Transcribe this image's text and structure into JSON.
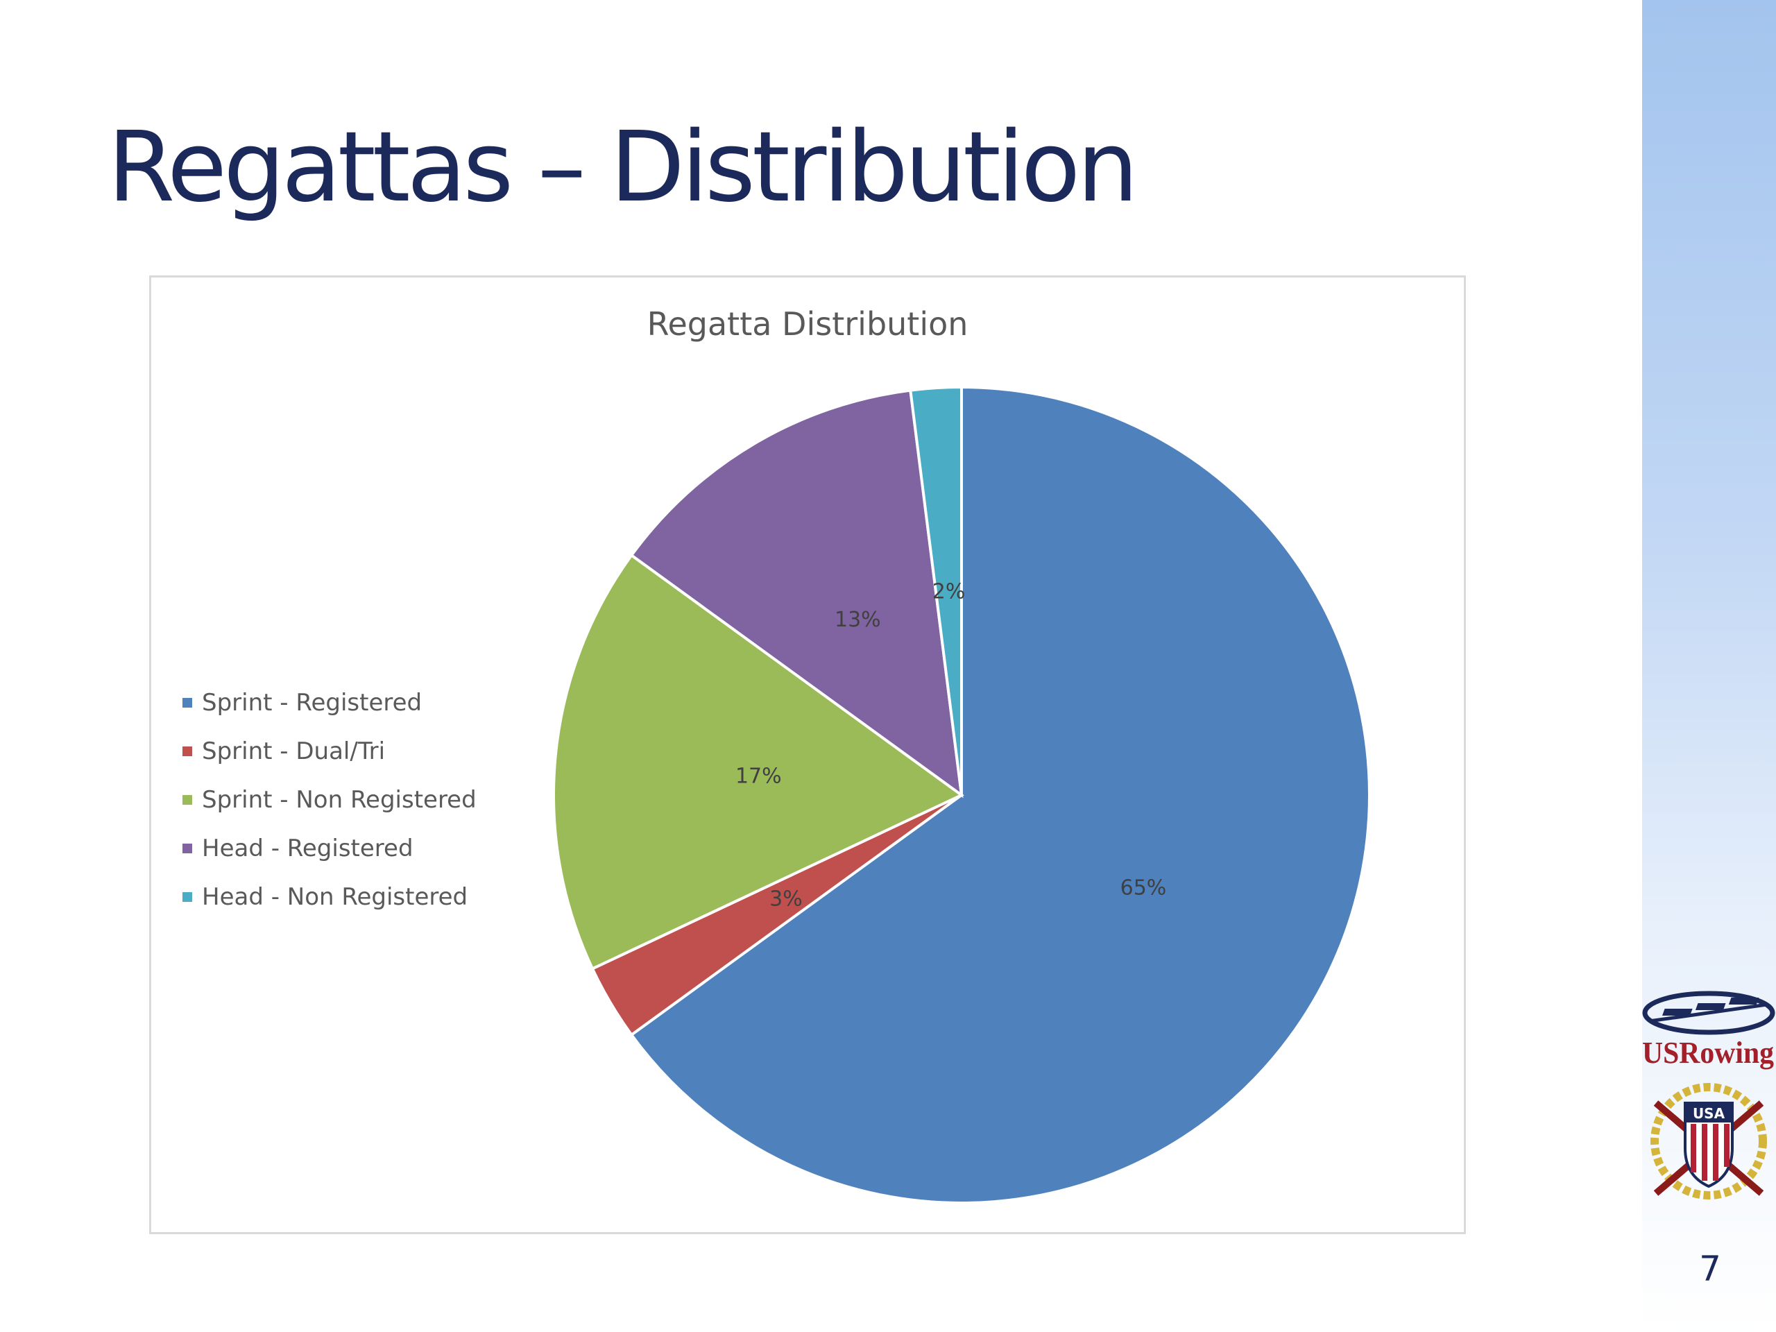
{
  "slide": {
    "title": "Regattas – Distribution",
    "page_number": "7"
  },
  "logo": {
    "name": "usrowing-logo",
    "text": "USRowing",
    "badge_text": "USA"
  },
  "colors": {
    "title": "#1c2a5b",
    "side_band": "#a3c4ee"
  },
  "chart_data": {
    "type": "pie",
    "title": "Regatta Distribution",
    "legend_position": "left",
    "slices": [
      {
        "name": "Sprint - Registered",
        "value": 65,
        "label": "65%",
        "color": "#4f81bd"
      },
      {
        "name": "Sprint - Dual/Tri",
        "value": 3,
        "label": "3%",
        "color": "#c0504d"
      },
      {
        "name": "Sprint - Non Registered",
        "value": 17,
        "label": "17%",
        "color": "#9bbb59"
      },
      {
        "name": "Head - Registered",
        "value": 13,
        "label": "13%",
        "color": "#8064a2"
      },
      {
        "name": "Head - Non Registered",
        "value": 2,
        "label": "2%",
        "color": "#4bacc6"
      }
    ]
  }
}
